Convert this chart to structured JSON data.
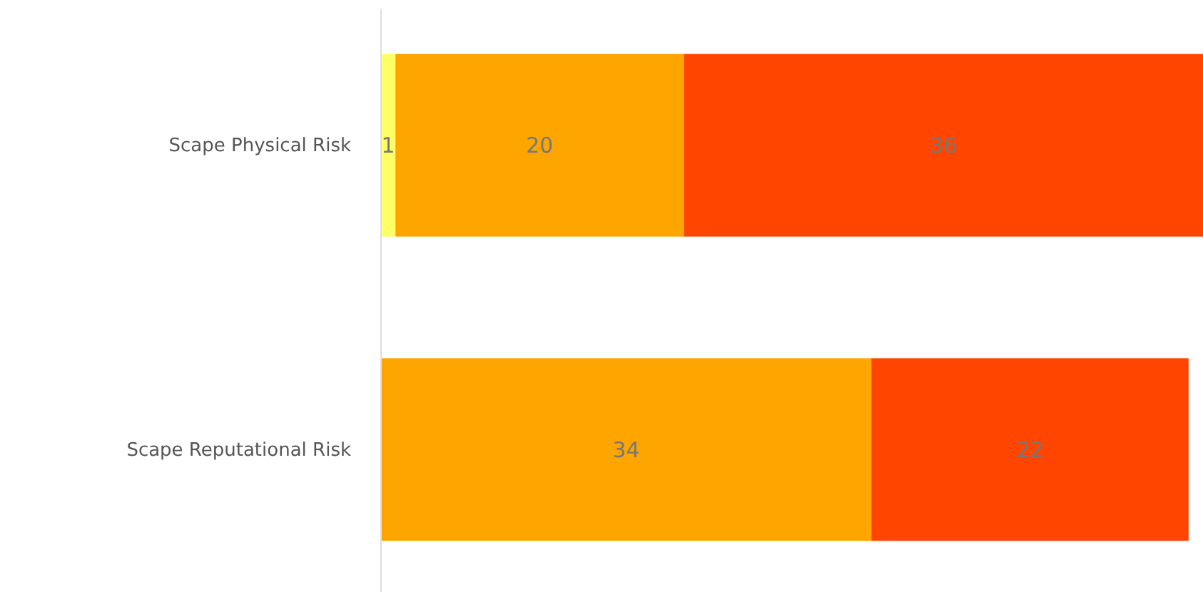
{
  "chart_data": {
    "type": "bar",
    "orientation": "horizontal",
    "stacked": true,
    "categories": [
      "Scape Physical Risk",
      "Scape Reputational Risk"
    ],
    "series": [
      {
        "color": "#ffff66",
        "values": [
          1,
          null
        ]
      },
      {
        "color": "#ffa500",
        "values": [
          20,
          34
        ]
      },
      {
        "color": "#ff4500",
        "values": [
          36,
          22
        ]
      }
    ],
    "xlim": [
      0,
      57
    ],
    "data_labels": true,
    "tick_labels": "y"
  }
}
